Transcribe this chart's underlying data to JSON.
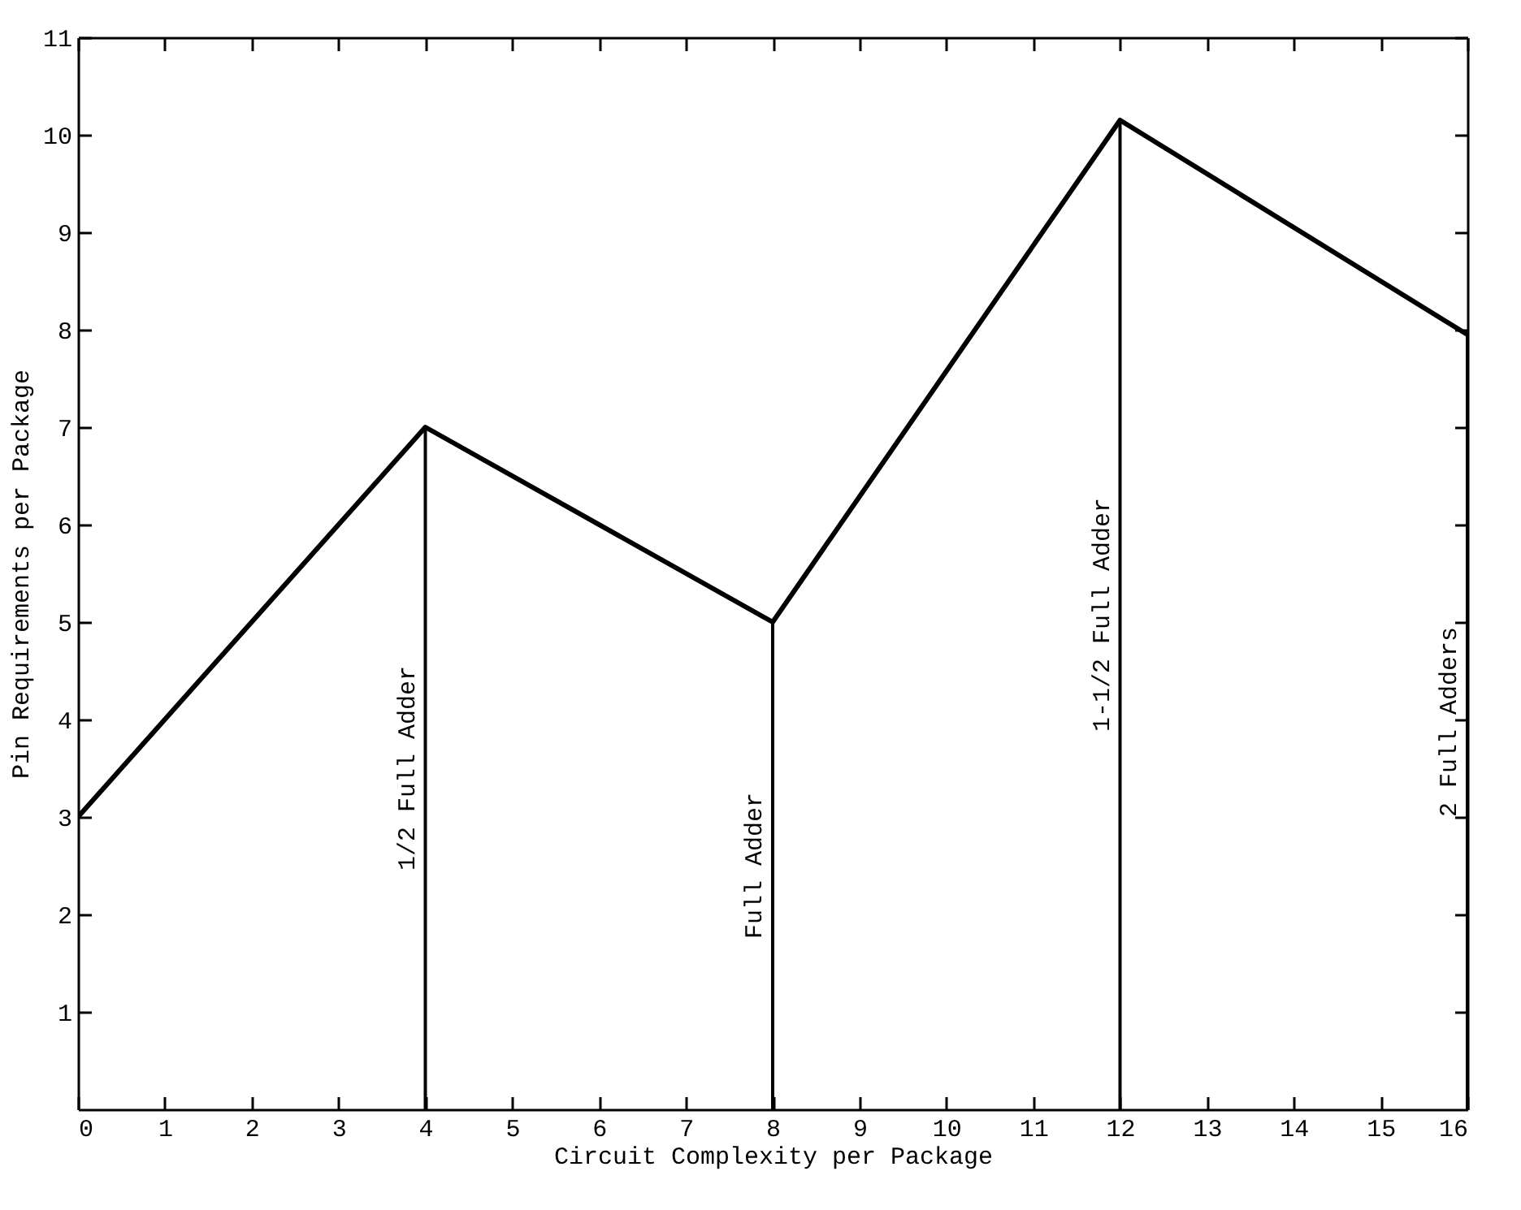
{
  "chart_data": {
    "type": "line",
    "xlabel": "Circuit Complexity per Package",
    "ylabel": "Pin Requirements per Package",
    "x": [
      0,
      4,
      8,
      12,
      16
    ],
    "series": [
      {
        "color": "#000000",
        "values": [
          3,
          7,
          5,
          10.15,
          7.95
        ]
      }
    ],
    "xlim": [
      0,
      16
    ],
    "xticks": [
      0,
      1,
      2,
      3,
      4,
      5,
      6,
      7,
      8,
      9,
      10,
      11,
      12,
      13,
      14,
      15,
      16
    ],
    "ylim": [
      0,
      11
    ],
    "yticks": [
      1,
      2,
      3,
      4,
      5,
      6,
      7,
      8,
      9,
      10,
      11
    ],
    "marker": "none",
    "line_style": "solid",
    "ref_lines": [
      {
        "axis": "x",
        "value": 4,
        "label": "1/2 Full Adder"
      },
      {
        "axis": "x",
        "value": 8,
        "label": "Full Adder"
      },
      {
        "axis": "x",
        "value": 12,
        "label": "1-1/2 Full Adder"
      },
      {
        "axis": "x",
        "value": 16,
        "label": "2 Full Adders"
      }
    ]
  }
}
